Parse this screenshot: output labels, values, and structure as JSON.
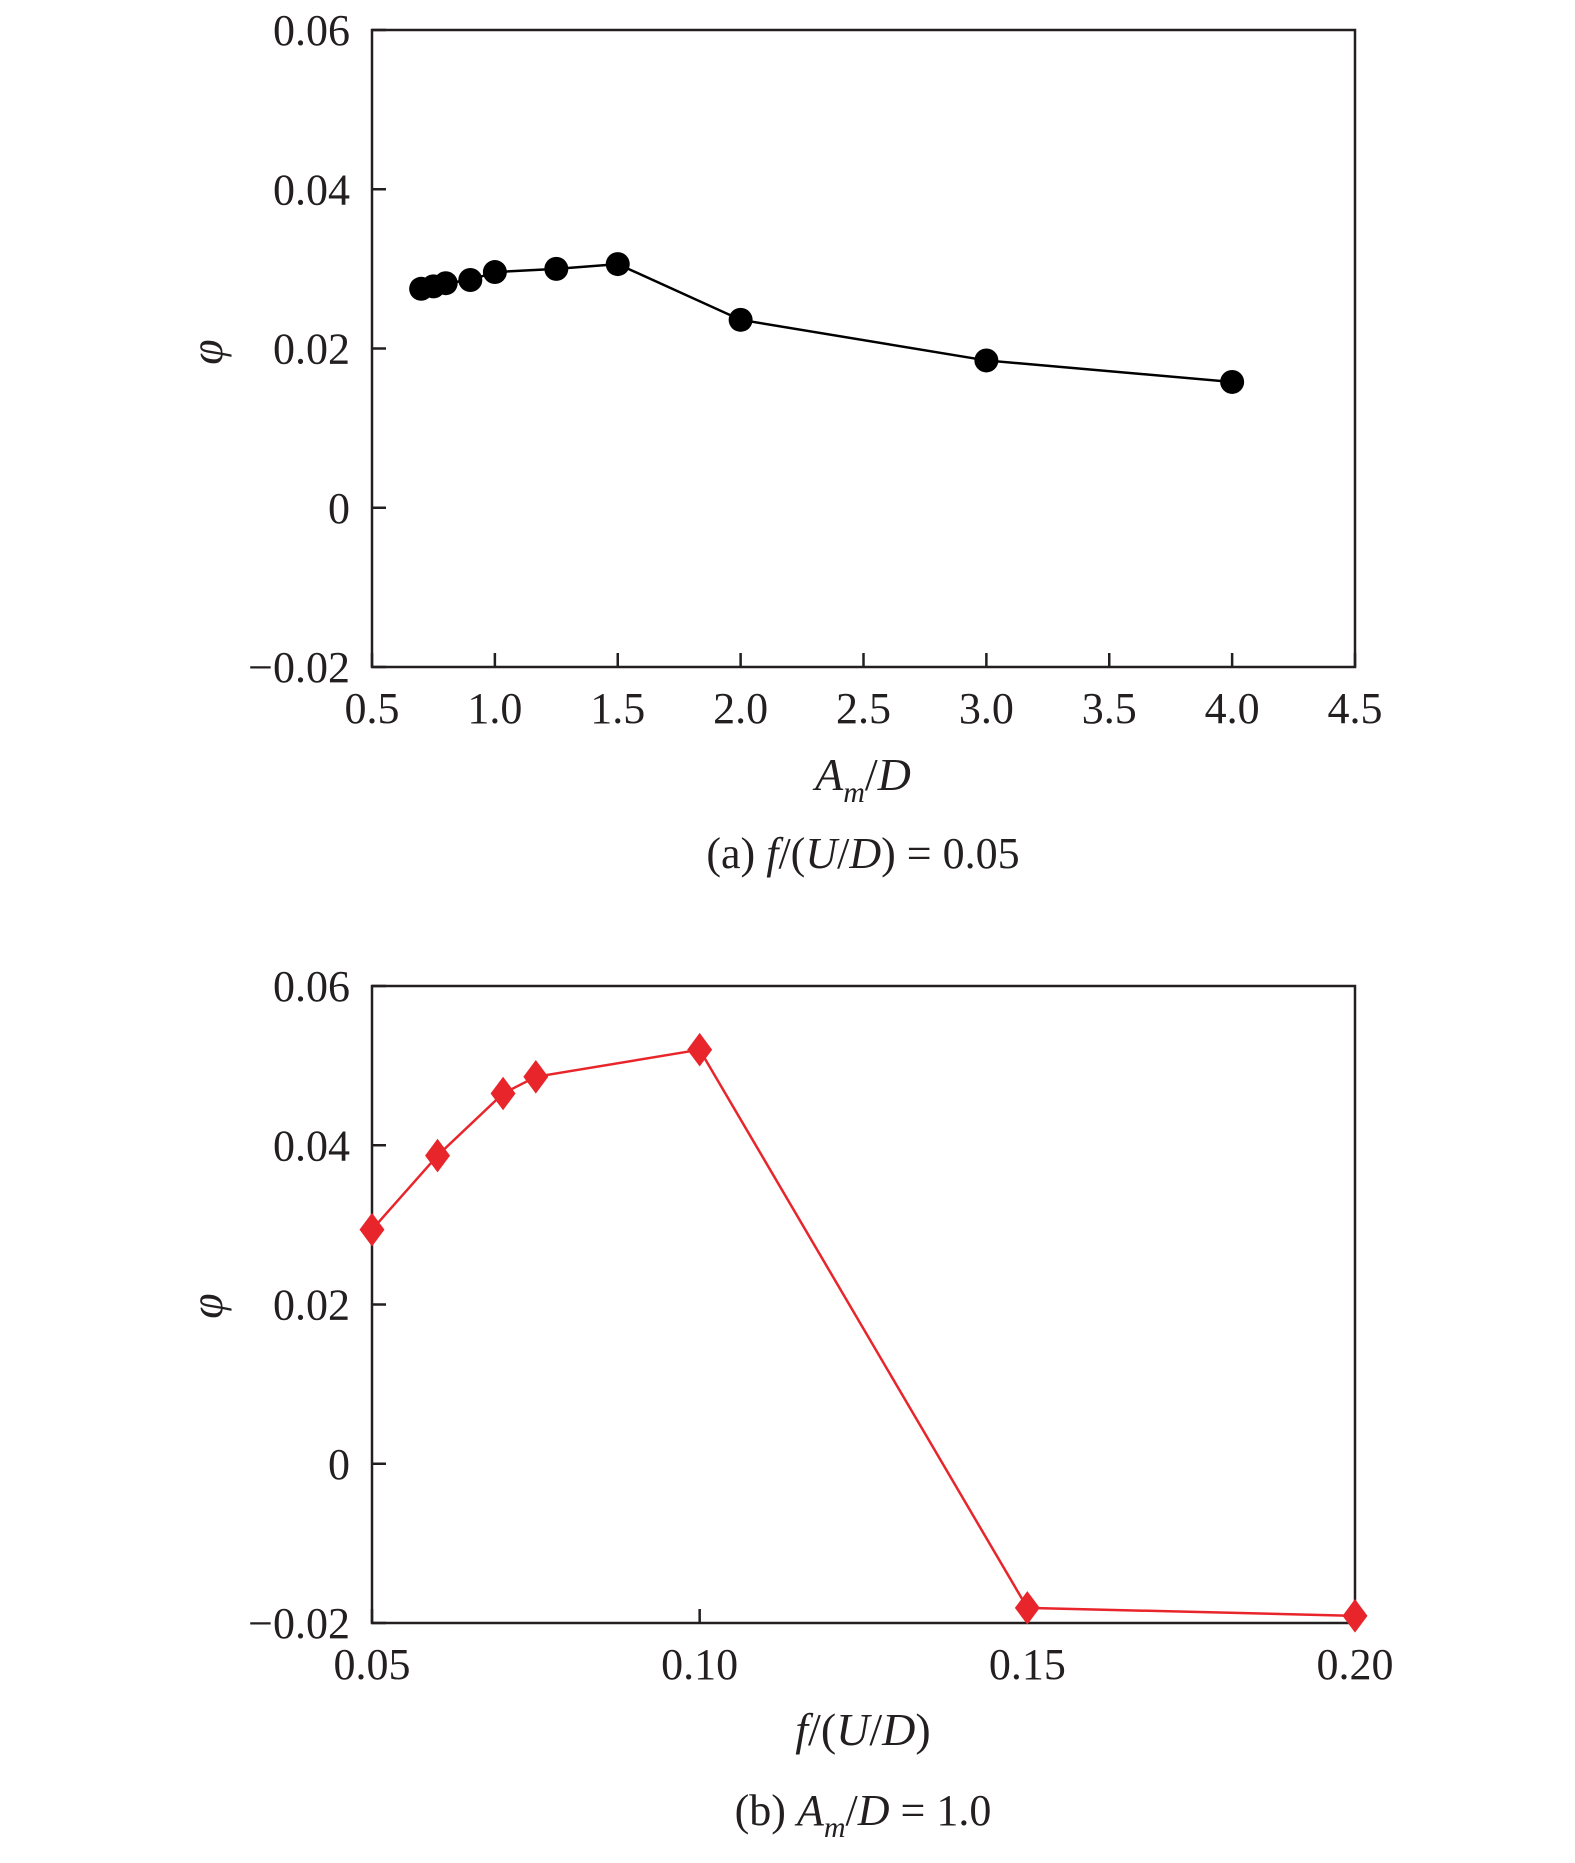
{
  "chart_data": [
    {
      "type": "line",
      "caption": "(a) f/(U/D) = 0.05",
      "xlabel": "Am/D",
      "ylabel": "φ",
      "xlim": [
        0.5,
        4.5
      ],
      "ylim": [
        -0.02,
        0.06
      ],
      "xticks": [
        "0.5",
        "1.0",
        "1.5",
        "2.0",
        "2.5",
        "3.0",
        "3.5",
        "4.0",
        "4.5"
      ],
      "yticks": [
        "−0.02",
        "0",
        "0.02",
        "0.04",
        "0.06"
      ],
      "series": [
        {
          "color": "#000000",
          "marker": "circle",
          "x": [
            0.7,
            0.75,
            0.8,
            0.9,
            1.0,
            1.25,
            1.5,
            2.0,
            3.0,
            4.0
          ],
          "y": [
            0.0275,
            0.0278,
            0.0282,
            0.0286,
            0.0296,
            0.03,
            0.0306,
            0.0236,
            0.0185,
            0.0158
          ]
        }
      ],
      "grid": false
    },
    {
      "type": "line",
      "caption": "(b) Am/D = 1.0",
      "xlabel": "f/(U/D)",
      "ylabel": "φ",
      "xlim": [
        0.05,
        0.2
      ],
      "ylim": [
        -0.02,
        0.06
      ],
      "xticks": [
        "0.05",
        "0.10",
        "0.15",
        "0.20"
      ],
      "yticks": [
        "−0.02",
        "0",
        "0.02",
        "0.04",
        "0.06"
      ],
      "series": [
        {
          "color": "#e8252b",
          "marker": "diamond",
          "x": [
            0.05,
            0.06,
            0.07,
            0.075,
            0.1,
            0.15,
            0.2
          ],
          "y": [
            0.0294,
            0.0387,
            0.0465,
            0.0486,
            0.052,
            -0.0181,
            -0.0191
          ]
        }
      ],
      "grid": false
    }
  ]
}
